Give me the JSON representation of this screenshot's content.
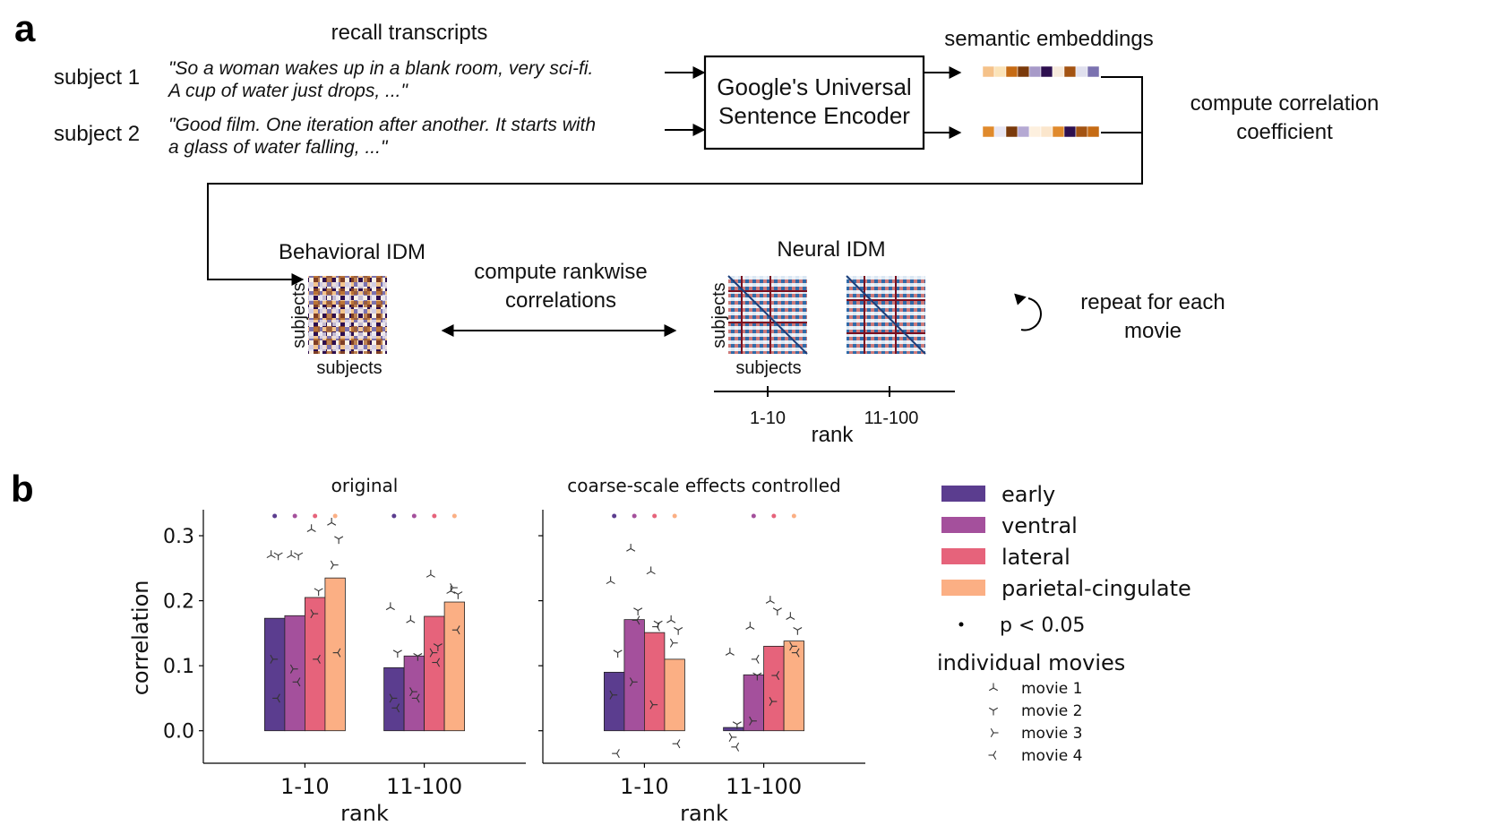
{
  "panel_a": {
    "label": "a",
    "recall_title": "recall transcripts",
    "subjects": [
      {
        "name": "subject 1",
        "line1": "\"So a woman wakes up in a blank room, very sci-fi.",
        "line2": "A cup of water just drops, ...\""
      },
      {
        "name": "subject 2",
        "line1": "\"Good film. One iteration after another. It starts with",
        "line2": "a glass of water falling, ...\""
      }
    ],
    "encoder_line1": "Google's Universal",
    "encoder_line2": "Sentence Encoder",
    "embeddings_title": "semantic embeddings",
    "embedding_colors": [
      [
        "#f5c28a",
        "#fbe3b8",
        "#c66b14",
        "#7a3a0b",
        "#a79ac8",
        "#2d0f4f",
        "#f6eadc",
        "#a35312",
        "#e0e0ee",
        "#7b72b0"
      ],
      [
        "#e08a2c",
        "#e8e6f2",
        "#7a3a0b",
        "#b5a9d3",
        "#fdf0df",
        "#fbe6cc",
        "#e08a2c",
        "#2d0f4f",
        "#a35312",
        "#c66b14"
      ]
    ],
    "corr_line1": "compute correlation",
    "corr_line2": "coefficient",
    "behavioral_title": "Behavioral IDM",
    "rankwise_line1": "compute rankwise",
    "rankwise_line2": "correlations",
    "neural_title": "Neural IDM",
    "axis_subjects": "subjects",
    "rank_ticks": [
      "1-10",
      "11-100"
    ],
    "rank_label": "rank",
    "repeat_line1": "repeat for each",
    "repeat_line2": "movie"
  },
  "panel_b": {
    "label": "b",
    "legend": {
      "regions": [
        {
          "name": "early",
          "color": "#5b3d8f"
        },
        {
          "name": "ventral",
          "color": "#a4509c"
        },
        {
          "name": "lateral",
          "color": "#e6637b"
        },
        {
          "name": "parietal-cingulate",
          "color": "#fbaf84"
        }
      ],
      "sig_label": "p < 0.05",
      "movies_title": "individual movies",
      "movies": [
        "movie 1",
        "movie 2",
        "movie 3",
        "movie 4"
      ]
    }
  },
  "chart_data": [
    {
      "type": "bar",
      "title": "original",
      "xlabel": "rank",
      "ylabel": "correlation",
      "categories": [
        "1-10",
        "11-100"
      ],
      "ylim": [
        -0.05,
        0.34
      ],
      "yticks": [
        0.0,
        0.1,
        0.2,
        0.3
      ],
      "ytick_labels": [
        "0.0",
        "0.1",
        "0.2",
        "0.3"
      ],
      "series": [
        {
          "name": "early",
          "values": [
            0.173,
            0.097
          ],
          "significant": [
            true,
            true
          ],
          "movies": [
            [
              0.27,
              0.27,
              0.11,
              0.05
            ],
            [
              0.19,
              0.12,
              0.05,
              0.035
            ]
          ]
        },
        {
          "name": "ventral",
          "values": [
            0.177,
            0.115
          ],
          "significant": [
            true,
            true
          ],
          "movies": [
            [
              0.27,
              0.27,
              0.095,
              0.075
            ],
            [
              0.17,
              0.115,
              0.06,
              0.05
            ]
          ]
        },
        {
          "name": "lateral",
          "values": [
            0.205,
            0.176
          ],
          "significant": [
            true,
            true
          ],
          "movies": [
            [
              0.31,
              0.215,
              0.18,
              0.11
            ],
            [
              0.24,
              0.13,
              0.12,
              0.105
            ]
          ]
        },
        {
          "name": "parietal-cingulate",
          "values": [
            0.235,
            0.198
          ],
          "significant": [
            true,
            true
          ],
          "movies": [
            [
              0.32,
              0.295,
              0.255,
              0.12
            ],
            [
              0.215,
              0.21,
              0.22,
              0.155
            ]
          ]
        }
      ]
    },
    {
      "type": "bar",
      "title": "coarse-scale effects controlled",
      "xlabel": "rank",
      "ylabel": "",
      "categories": [
        "1-10",
        "11-100"
      ],
      "ylim": [
        -0.05,
        0.34
      ],
      "yticks": [
        0.0,
        0.1,
        0.2,
        0.3
      ],
      "series": [
        {
          "name": "early",
          "values": [
            0.09,
            0.005
          ],
          "significant": [
            true,
            false
          ],
          "movies": [
            [
              0.23,
              0.12,
              0.055,
              -0.035
            ],
            [
              0.12,
              0.01,
              -0.01,
              -0.025
            ]
          ]
        },
        {
          "name": "ventral",
          "values": [
            0.171,
            0.086
          ],
          "significant": [
            true,
            true
          ],
          "movies": [
            [
              0.28,
              0.185,
              0.075,
              0.17
            ],
            [
              0.16,
              0.085,
              0.015,
              0.11
            ]
          ]
        },
        {
          "name": "lateral",
          "values": [
            0.151,
            0.13
          ],
          "significant": [
            true,
            true
          ],
          "movies": [
            [
              0.245,
              0.165,
              0.04,
              0.16
            ],
            [
              0.2,
              0.185,
              0.045,
              0.085
            ]
          ]
        },
        {
          "name": "parietal-cingulate",
          "values": [
            0.11,
            0.138
          ],
          "significant": [
            true,
            true
          ],
          "movies": [
            [
              0.17,
              0.155,
              0.135,
              -0.02
            ],
            [
              0.175,
              0.155,
              0.13,
              0.12
            ]
          ]
        }
      ]
    }
  ]
}
